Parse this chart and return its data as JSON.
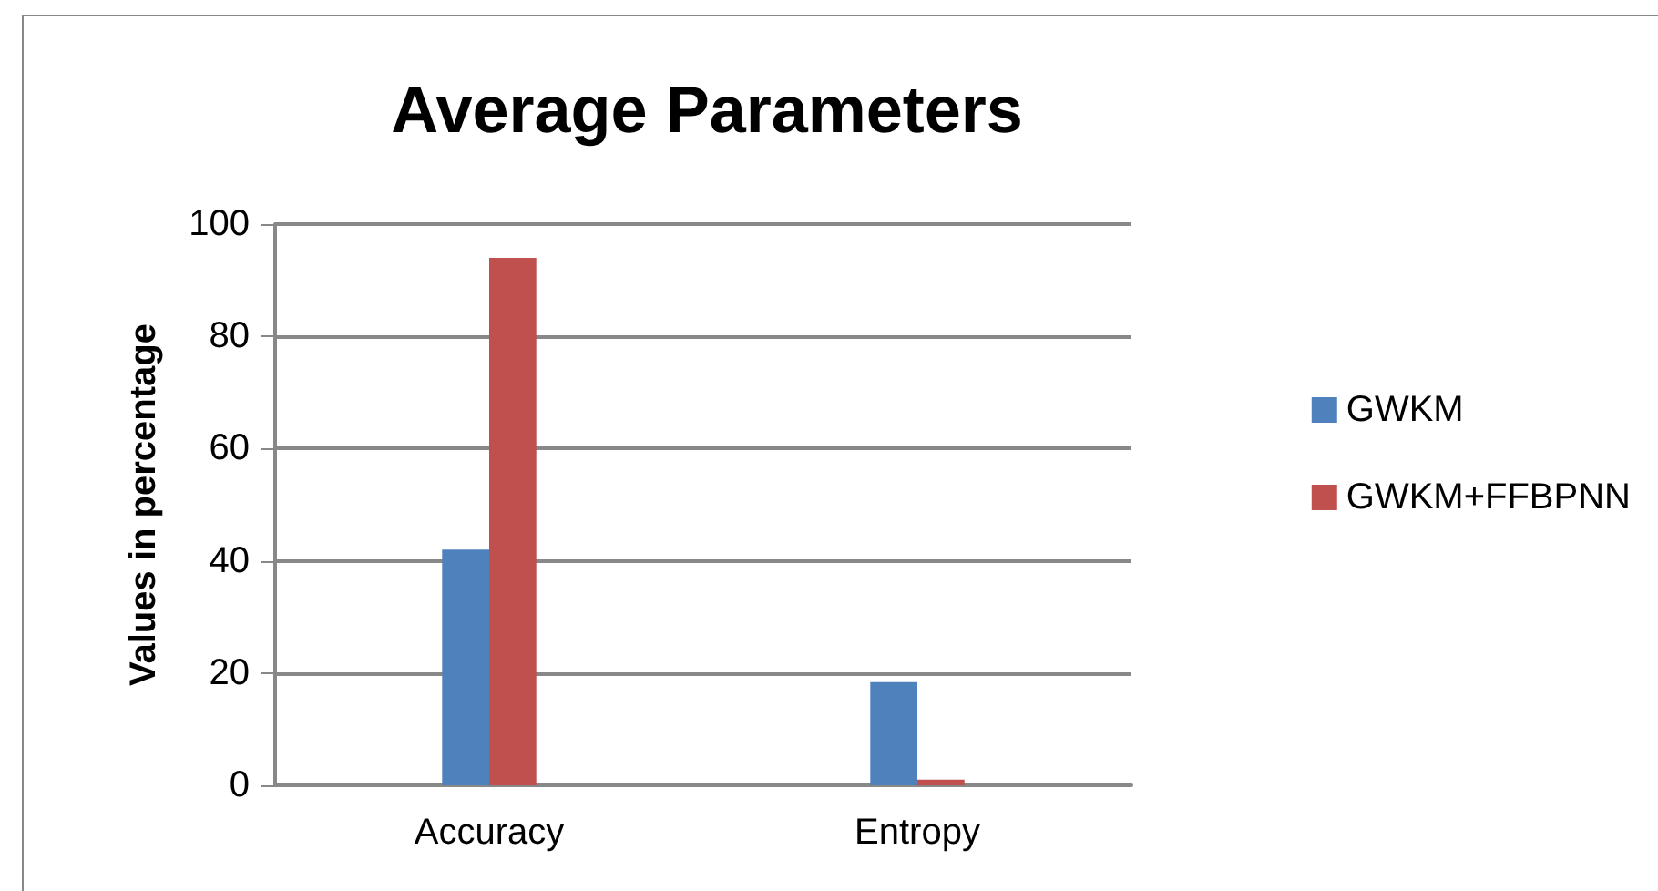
{
  "chart_data": {
    "type": "bar",
    "title": "Average Parameters",
    "ylabel": "Values in percentage",
    "categories": [
      "Accuracy",
      "Entropy"
    ],
    "series": [
      {
        "name": "GWKM",
        "color": "#4f81bd",
        "values": [
          42,
          18.4
        ]
      },
      {
        "name": "GWKM+FFBPNN",
        "color": "#c0504d",
        "values": [
          94,
          1
        ]
      }
    ],
    "ylim": [
      0,
      100
    ],
    "yticks": [
      0,
      20,
      40,
      60,
      80,
      100
    ],
    "grid": "y",
    "legend": "right"
  }
}
